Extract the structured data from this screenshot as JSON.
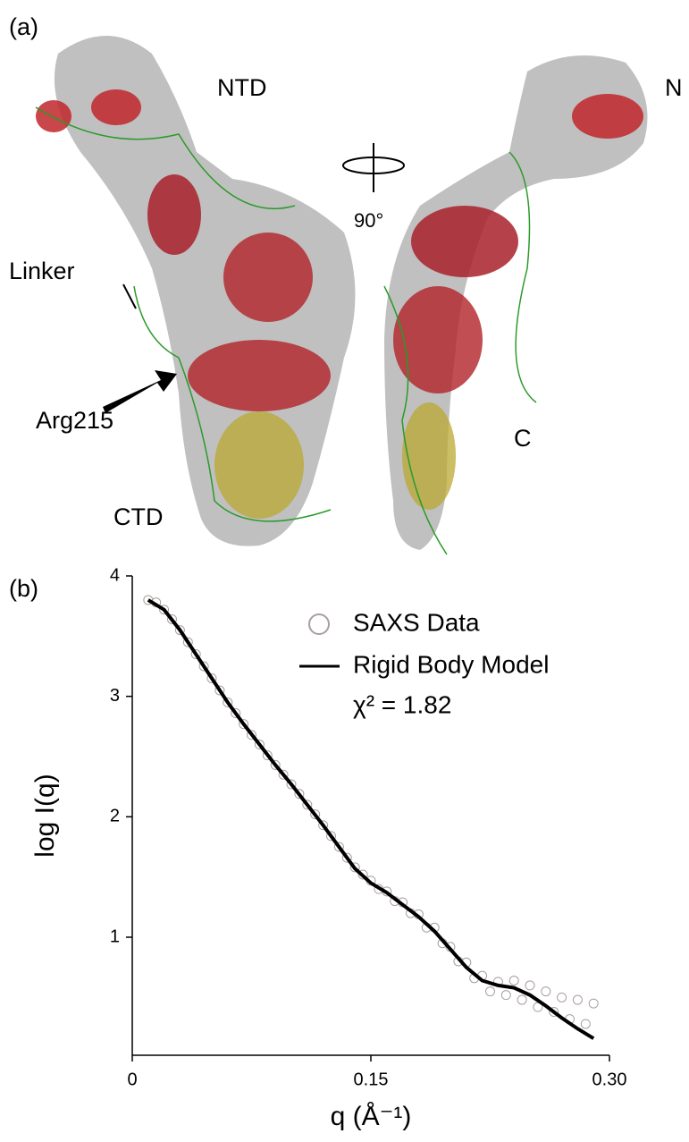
{
  "panel_a": {
    "label": "(a)",
    "ntd": "NTD",
    "n": "N",
    "rotation": "90°",
    "linker": "Linker",
    "arg": "Arg215",
    "ctd": "CTD",
    "c": "C"
  },
  "chart_data": {
    "type": "scatter",
    "panel_label": "(b)",
    "x_label": "q (Å⁻¹)",
    "y_label": "log I(q)",
    "annotation": "χ² = 1.82",
    "xlim": [
      0,
      0.3
    ],
    "xticks": [
      0,
      0.15,
      {
        "value": 0.3,
        "label": "0.30"
      }
    ],
    "ylim": [
      0.02,
      4
    ],
    "yticks": [
      1,
      2,
      3,
      4
    ],
    "series": [
      {
        "name": "SAXS Data",
        "type": "scatter",
        "color": "#a89f9c",
        "x": [
          0.01,
          0.015,
          0.02,
          0.025,
          0.03,
          0.035,
          0.04,
          0.045,
          0.05,
          0.055,
          0.06,
          0.065,
          0.07,
          0.075,
          0.08,
          0.085,
          0.09,
          0.095,
          0.1,
          0.105,
          0.11,
          0.115,
          0.12,
          0.125,
          0.13,
          0.135,
          0.14,
          0.145,
          0.15,
          0.155,
          0.16,
          0.165,
          0.17,
          0.175,
          0.18,
          0.185,
          0.19,
          0.195,
          0.2,
          0.205,
          0.21,
          0.215,
          0.22,
          0.225,
          0.23,
          0.235,
          0.24,
          0.245,
          0.25,
          0.255,
          0.26,
          0.265,
          0.27,
          0.275,
          0.28,
          0.285,
          0.29
        ],
        "values": [
          3.8,
          3.78,
          3.72,
          3.64,
          3.55,
          3.45,
          3.35,
          3.25,
          3.15,
          3.05,
          2.95,
          2.86,
          2.77,
          2.68,
          2.6,
          2.51,
          2.43,
          2.35,
          2.27,
          2.19,
          2.1,
          2.02,
          1.93,
          1.84,
          1.75,
          1.66,
          1.58,
          1.52,
          1.47,
          1.4,
          1.38,
          1.3,
          1.29,
          1.2,
          1.19,
          1.08,
          1.08,
          0.95,
          0.92,
          0.8,
          0.79,
          0.66,
          0.68,
          0.55,
          0.63,
          0.52,
          0.64,
          0.48,
          0.6,
          0.42,
          0.55,
          0.38,
          0.5,
          0.32,
          0.48,
          0.28,
          0.45
        ]
      },
      {
        "name": "Rigid Body Model",
        "type": "line",
        "color": "#000000",
        "x": [
          0.01,
          0.02,
          0.03,
          0.04,
          0.05,
          0.06,
          0.07,
          0.08,
          0.09,
          0.1,
          0.11,
          0.12,
          0.13,
          0.14,
          0.15,
          0.16,
          0.17,
          0.18,
          0.19,
          0.2,
          0.21,
          0.22,
          0.23,
          0.24,
          0.25,
          0.26,
          0.27,
          0.28,
          0.29
        ],
        "values": [
          3.8,
          3.72,
          3.55,
          3.35,
          3.15,
          2.95,
          2.77,
          2.6,
          2.43,
          2.27,
          2.1,
          1.93,
          1.75,
          1.57,
          1.45,
          1.37,
          1.27,
          1.17,
          1.05,
          0.9,
          0.75,
          0.64,
          0.6,
          0.58,
          0.52,
          0.43,
          0.33,
          0.24,
          0.16
        ]
      }
    ]
  }
}
